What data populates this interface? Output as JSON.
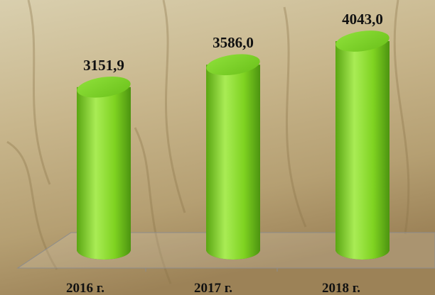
{
  "chart_data": {
    "type": "bar",
    "categories": [
      "2016 г.",
      "2017 г.",
      "2018 г."
    ],
    "values": [
      3151.9,
      3586.0,
      4043.0
    ],
    "value_labels": [
      "3151,9",
      "3586,0",
      "4043,0"
    ],
    "color": "#7fd321"
  }
}
